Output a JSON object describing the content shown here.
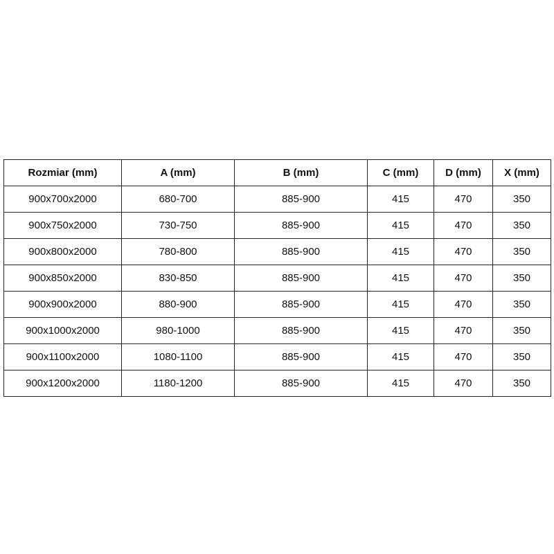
{
  "table": {
    "header": [
      "Rozmiar (mm)",
      "A (mm)",
      "B (mm)",
      "C (mm)",
      "D (mm)",
      "X (mm)"
    ],
    "rows": [
      [
        "900x700x2000",
        "680-700",
        "885-900",
        "415",
        "470",
        "350"
      ],
      [
        "900x750x2000",
        "730-750",
        "885-900",
        "415",
        "470",
        "350"
      ],
      [
        "900x800x2000",
        "780-800",
        "885-900",
        "415",
        "470",
        "350"
      ],
      [
        "900x850x2000",
        "830-850",
        "885-900",
        "415",
        "470",
        "350"
      ],
      [
        "900x900x2000",
        "880-900",
        "885-900",
        "415",
        "470",
        "350"
      ],
      [
        "900x1000x2000",
        "980-1000",
        "885-900",
        "415",
        "470",
        "350"
      ],
      [
        "900x1100x2000",
        "1080-1100",
        "885-900",
        "415",
        "470",
        "350"
      ],
      [
        "900x1200x2000",
        "1180-1200",
        "885-900",
        "415",
        "470",
        "350"
      ]
    ]
  }
}
